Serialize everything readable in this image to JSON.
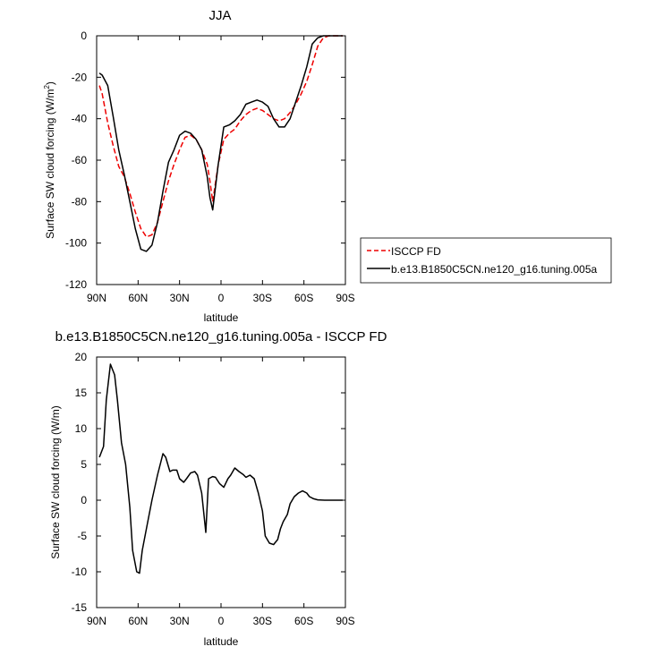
{
  "chart_data": [
    {
      "type": "line",
      "title": "JJA",
      "xlabel": "latitude",
      "ylabel": "Surface SW cloud forcing (W/m",
      "ylabel_sup": "2",
      "ylabel_close": ")",
      "xlim": [
        90,
        -90
      ],
      "ylim": [
        -120,
        0
      ],
      "xticks": [
        90,
        60,
        30,
        0,
        -30,
        -60,
        -90
      ],
      "xtick_labels": [
        "90N",
        "60N",
        "30N",
        "0",
        "30S",
        "60S",
        "90S"
      ],
      "yticks": [
        0,
        -20,
        -40,
        -60,
        -80,
        -100,
        -120
      ],
      "ytick_labels": [
        "0",
        "-20",
        "-40",
        "-60",
        "-80",
        "-100",
        "-120"
      ],
      "grid": false,
      "legend_position": "right",
      "series": [
        {
          "name": "ISCCP FD",
          "color": "#ee0000",
          "style": "dashed",
          "x": [
            88,
            86,
            82,
            78,
            74,
            70,
            66,
            62,
            58,
            54,
            50,
            46,
            42,
            38,
            34,
            30,
            26,
            22,
            18,
            14,
            10,
            8,
            6,
            2,
            -2,
            -6,
            -10,
            -14,
            -18,
            -22,
            -26,
            -30,
            -34,
            -38,
            -42,
            -46,
            -50,
            -54,
            -58,
            -62,
            -66,
            -70,
            -74,
            -78,
            -82,
            -86,
            -88
          ],
          "y": [
            -24,
            -28,
            -42,
            -53,
            -63,
            -68,
            -76,
            -85,
            -93,
            -97,
            -96,
            -90,
            -80,
            -70,
            -62,
            -55,
            -49,
            -48,
            -50,
            -55,
            -62,
            -70,
            -80,
            -62,
            -50,
            -47,
            -45,
            -41,
            -38,
            -36,
            -35,
            -36,
            -38,
            -40,
            -41,
            -40,
            -37,
            -33,
            -28,
            -22,
            -14,
            -5,
            -1,
            0,
            0,
            0,
            0
          ]
        },
        {
          "name": "b.e13.B1850C5CN.ne120_g16.tuning.005a",
          "color": "#000000",
          "style": "solid",
          "x": [
            88,
            86,
            82,
            78,
            74,
            70,
            66,
            62,
            58,
            54,
            50,
            46,
            42,
            38,
            34,
            30,
            26,
            22,
            18,
            14,
            10,
            8,
            6,
            2,
            -2,
            -6,
            -10,
            -14,
            -18,
            -22,
            -26,
            -30,
            -34,
            -38,
            -42,
            -46,
            -50,
            -54,
            -58,
            -62,
            -66,
            -70,
            -74,
            -78,
            -82,
            -86,
            -88
          ],
          "y": [
            -18,
            -19,
            -24,
            -39,
            -55,
            -67,
            -80,
            -93,
            -103,
            -104,
            -101,
            -90,
            -75,
            -61,
            -55,
            -48,
            -46,
            -47,
            -50,
            -55,
            -68,
            -78,
            -84,
            -62,
            -44,
            -43,
            -41,
            -38,
            -33,
            -32,
            -31,
            -32,
            -34,
            -40,
            -44,
            -44,
            -40,
            -32,
            -24,
            -15,
            -4,
            -1,
            0,
            0,
            0,
            0,
            0
          ]
        }
      ]
    },
    {
      "type": "line",
      "title": "b.e13.B1850C5CN.ne120_g16.tuning.005a - ISCCP FD",
      "xlabel": "latitude",
      "ylabel": "Surface SW cloud forcing (W/m)",
      "xlim": [
        90,
        -90
      ],
      "ylim": [
        -15,
        20
      ],
      "xticks": [
        90,
        60,
        30,
        0,
        -30,
        -60,
        -90
      ],
      "xtick_labels": [
        "90N",
        "60N",
        "30N",
        "0",
        "30S",
        "60S",
        "90S"
      ],
      "yticks": [
        20,
        15,
        10,
        5,
        0,
        -5,
        -10,
        -15
      ],
      "ytick_labels": [
        "20",
        "15",
        "10",
        "5",
        "0",
        "-5",
        "-10",
        "-15"
      ],
      "grid": false,
      "series": [
        {
          "color": "#000000",
          "style": "solid",
          "x": [
            88,
            85,
            83,
            80,
            77,
            75,
            72,
            69,
            66,
            64,
            61,
            59,
            57,
            54,
            50,
            46,
            42,
            40,
            37,
            35,
            32,
            30,
            27,
            25,
            22,
            19,
            17,
            14,
            11,
            9,
            6,
            4,
            1,
            -2,
            -5,
            -7,
            -10,
            -13,
            -16,
            -18,
            -21,
            -24,
            -27,
            -30,
            -32,
            -35,
            -38,
            -41,
            -43,
            -45,
            -48,
            -50,
            -53,
            -56,
            -59,
            -62,
            -64,
            -67,
            -70,
            -75,
            -80,
            -85,
            -88
          ],
          "y": [
            6,
            7.5,
            14,
            19,
            17.5,
            14,
            8,
            5,
            -1,
            -7,
            -10,
            -10.2,
            -7,
            -4,
            0,
            3.5,
            6.5,
            6,
            4,
            4.2,
            4.2,
            3,
            2.5,
            3,
            3.8,
            4,
            3.5,
            1,
            -4.5,
            3,
            3.3,
            3.2,
            2.3,
            1.8,
            3,
            3.5,
            4.5,
            4,
            3.6,
            3.2,
            3.5,
            3,
            1,
            -1.5,
            -5,
            -6,
            -6.2,
            -5.5,
            -4,
            -3,
            -2,
            -0.5,
            0.5,
            1,
            1.3,
            1,
            0.5,
            0.2,
            0.05,
            0,
            0,
            0,
            0
          ]
        }
      ]
    }
  ]
}
